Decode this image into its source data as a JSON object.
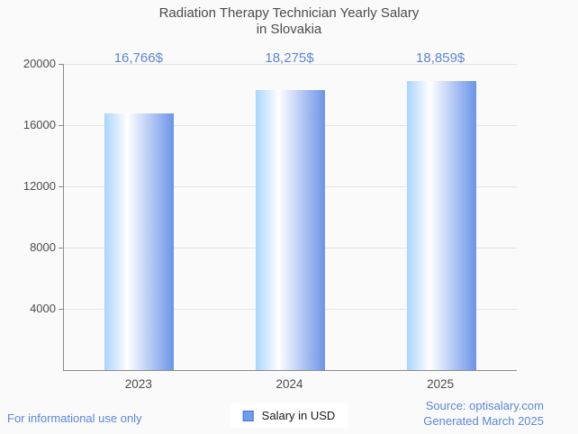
{
  "header": {
    "title_line1": "Radiation Therapy Technician Yearly Salary",
    "title_line2": "in Slovakia"
  },
  "chart_data": {
    "type": "bar",
    "title": "Radiation Therapy Technician Yearly Salary in Slovakia",
    "categories": [
      "2023",
      "2024",
      "2025"
    ],
    "values": [
      16766,
      18275,
      18859
    ],
    "value_labels": [
      "16,766$",
      "18,275$",
      "18,859$"
    ],
    "series": [
      {
        "name": "Salary in USD",
        "values": [
          16766,
          18275,
          18859
        ]
      }
    ],
    "xlabel": "",
    "ylabel": "",
    "ylim": [
      0,
      20000
    ],
    "yticks": [
      4000,
      8000,
      12000,
      16000,
      20000
    ],
    "grid": true,
    "legend_position": "bottom"
  },
  "legend": {
    "label": "Salary in USD"
  },
  "footer": {
    "disclaimer": "For informational use only",
    "source": "Source: optisalary.com",
    "generated": "Generated March 2025"
  },
  "colors": {
    "background": "#fafafa",
    "accent_blue": "#5b87d8",
    "title_gray": "#4c4c4c",
    "axis_line": "#8c8c8c",
    "grid_line": "#e4e4e4",
    "bar_gradient_left": "#a9d5fe",
    "bar_gradient_mid": "#ffffff",
    "bar_gradient_right": "#6b94e8",
    "legend_swatch_fill": "#6d9eeb",
    "legend_swatch_border": "#4379c9",
    "legend_bg": "#ffffff"
  }
}
